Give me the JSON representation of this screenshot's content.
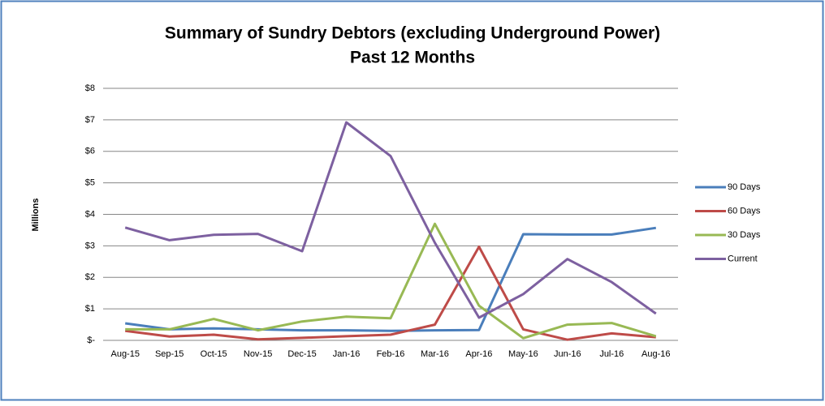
{
  "chart_data": {
    "type": "line",
    "title": "Summary of Sundry Debtors (excluding Underground Power)",
    "subtitle": "Past 12 Months",
    "y_label": "Millions",
    "categories": [
      "Aug-15",
      "Sep-15",
      "Oct-15",
      "Nov-15",
      "Dec-15",
      "Jan-16",
      "Feb-16",
      "Mar-16",
      "Apr-16",
      "May-16",
      "Jun-16",
      "Jul-16",
      "Aug-16"
    ],
    "series": [
      {
        "name": "90 Days",
        "color": "#4a7ebb",
        "values": [
          0.54,
          0.35,
          0.38,
          0.35,
          0.32,
          0.32,
          0.3,
          0.32,
          0.33,
          3.37,
          3.36,
          3.36,
          3.57
        ]
      },
      {
        "name": "60 Days",
        "color": "#be4b48",
        "values": [
          0.3,
          0.12,
          0.18,
          0.03,
          0.08,
          0.13,
          0.18,
          0.5,
          2.97,
          0.35,
          0.02,
          0.22,
          0.1
        ]
      },
      {
        "name": "30 Days",
        "color": "#98b954",
        "values": [
          0.35,
          0.35,
          0.68,
          0.32,
          0.6,
          0.75,
          0.7,
          3.7,
          1.1,
          0.07,
          0.5,
          0.55,
          0.13
        ]
      },
      {
        "name": "Current",
        "color": "#7d60a0",
        "values": [
          3.58,
          3.18,
          3.35,
          3.38,
          2.83,
          6.92,
          5.85,
          3.1,
          0.72,
          1.47,
          2.58,
          1.85,
          0.85
        ]
      }
    ],
    "ylim": [
      0,
      8
    ],
    "yticks": [
      {
        "value": 0,
        "label": "$-"
      },
      {
        "value": 1,
        "label": "$1"
      },
      {
        "value": 2,
        "label": "$2"
      },
      {
        "value": 3,
        "label": "$3"
      },
      {
        "value": 4,
        "label": "$4"
      },
      {
        "value": 5,
        "label": "$5"
      },
      {
        "value": 6,
        "label": "$6"
      },
      {
        "value": 7,
        "label": "$7"
      },
      {
        "value": 8,
        "label": "$8"
      }
    ],
    "grid": true,
    "legend": "right"
  }
}
